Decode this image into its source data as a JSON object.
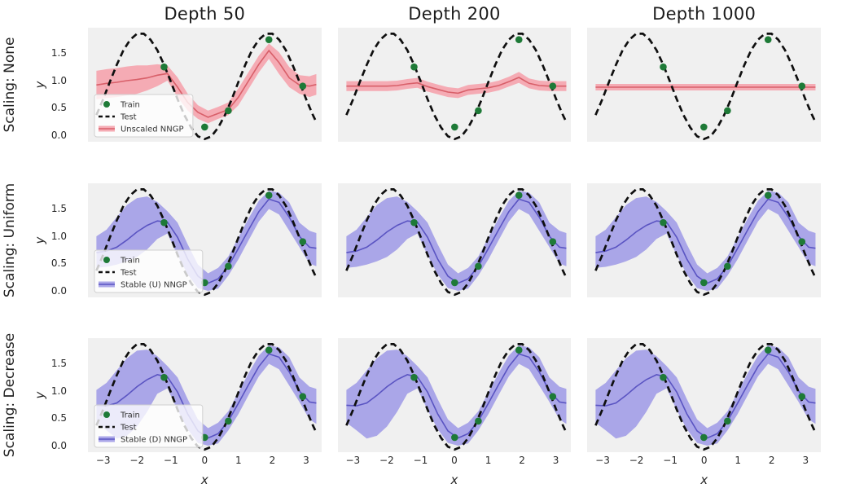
{
  "figure": {
    "columns": [
      "Depth 50",
      "Depth 200",
      "Depth 1000"
    ],
    "rows": [
      {
        "label": "Scaling: None",
        "series_label": "Unscaled NNGP",
        "line_color": "#d85f69",
        "band_color": "#f4a7b0",
        "cells": [
          "unscaled_d50",
          "unscaled_d200",
          "unscaled_d1000"
        ],
        "legend": true
      },
      {
        "label": "Scaling: Uniform",
        "series_label": "Stable (U) NNGP",
        "line_color": "#5a54c2",
        "band_color": "#a5a1e7",
        "cells": [
          "stable_u",
          "stable_u",
          "stable_u"
        ],
        "legend": true
      },
      {
        "label": "Scaling: Decrease",
        "series_label": "Stable (D) NNGP",
        "line_color": "#5a54c2",
        "band_color": "#a5a1e7",
        "cells": [
          "stable_d",
          "stable_d",
          "stable_d"
        ],
        "legend": true
      }
    ],
    "legend_labels": {
      "train": "Train",
      "test": "Test"
    },
    "axes": {
      "xlabel": "x",
      "ylabel": "y",
      "xticks": [
        "−3",
        "−2",
        "−1",
        "0",
        "1",
        "2",
        "3"
      ],
      "xtick_values": [
        -3,
        -2,
        -1,
        0,
        1,
        2,
        3
      ],
      "yticks": [
        "0.0",
        "0.5",
        "1.0",
        "1.5"
      ],
      "ytick_values": [
        0.0,
        0.5,
        1.0,
        1.5
      ],
      "xlim": [
        -3.45,
        3.45
      ],
      "ylim": [
        -0.12,
        1.97
      ]
    },
    "colors": {
      "train_point": "#1e7a37",
      "test_line": "#0f0f0f",
      "plot_background": "#f0f0f0",
      "figure_background": "#ffffff",
      "tick_text": "#262626",
      "legend_text": "#333333"
    }
  },
  "chart_data": {
    "type": "line",
    "title": "",
    "x_grid": [
      -3.2,
      -2.9,
      -2.6,
      -2.3,
      -2.0,
      -1.7,
      -1.4,
      -1.1,
      -0.8,
      -0.5,
      -0.2,
      0.1,
      0.4,
      0.7,
      1.0,
      1.3,
      1.6,
      1.9,
      2.2,
      2.5,
      2.8,
      3.1,
      3.3
    ],
    "test_curve": {
      "x": [
        -3.2,
        -3.0,
        -2.8,
        -2.6,
        -2.4,
        -2.2,
        -2.0,
        -1.8,
        -1.6,
        -1.4,
        -1.2,
        -1.0,
        -0.8,
        -0.6,
        -0.4,
        -0.2,
        0.0,
        0.2,
        0.4,
        0.6,
        0.8,
        1.0,
        1.2,
        1.4,
        1.6,
        1.8,
        2.0,
        2.2,
        2.4,
        2.6,
        2.8,
        3.0,
        3.2,
        3.3
      ],
      "y": [
        0.37,
        0.66,
        0.98,
        1.29,
        1.56,
        1.75,
        1.86,
        1.86,
        1.75,
        1.56,
        1.29,
        0.98,
        0.66,
        0.37,
        0.14,
        -0.02,
        -0.07,
        -0.02,
        0.14,
        0.37,
        0.66,
        0.98,
        1.29,
        1.56,
        1.75,
        1.86,
        1.86,
        1.75,
        1.56,
        1.29,
        0.98,
        0.66,
        0.37,
        0.24
      ]
    },
    "train_points": {
      "x": [
        -1.2,
        0.0,
        0.7,
        1.9,
        2.9
      ],
      "y": [
        1.25,
        0.15,
        0.45,
        1.75,
        0.9
      ]
    },
    "curves": {
      "unscaled_d50": {
        "mean": [
          0.92,
          0.95,
          0.97,
          1.0,
          1.02,
          1.05,
          1.1,
          1.13,
          0.88,
          0.6,
          0.42,
          0.33,
          0.4,
          0.47,
          0.7,
          1.0,
          1.3,
          1.55,
          1.33,
          1.05,
          0.92,
          0.9,
          0.93
        ],
        "lo": [
          0.66,
          0.68,
          0.7,
          0.73,
          0.76,
          0.82,
          0.9,
          1.0,
          0.7,
          0.45,
          0.3,
          0.22,
          0.3,
          0.37,
          0.55,
          0.85,
          1.15,
          1.4,
          1.12,
          0.88,
          0.76,
          0.7,
          0.74
        ],
        "hi": [
          1.18,
          1.21,
          1.23,
          1.26,
          1.28,
          1.28,
          1.3,
          1.28,
          1.06,
          0.76,
          0.55,
          0.45,
          0.52,
          0.6,
          0.86,
          1.16,
          1.46,
          1.68,
          1.52,
          1.25,
          1.1,
          1.08,
          1.12
        ]
      },
      "unscaled_d200": {
        "mean": [
          0.9,
          0.9,
          0.9,
          0.9,
          0.9,
          0.91,
          0.94,
          0.96,
          0.89,
          0.84,
          0.79,
          0.77,
          0.83,
          0.85,
          0.87,
          0.91,
          0.98,
          1.06,
          0.95,
          0.91,
          0.9,
          0.9,
          0.9
        ],
        "lo": [
          0.81,
          0.81,
          0.81,
          0.81,
          0.81,
          0.82,
          0.85,
          0.87,
          0.8,
          0.75,
          0.7,
          0.68,
          0.74,
          0.76,
          0.78,
          0.82,
          0.89,
          0.96,
          0.86,
          0.82,
          0.81,
          0.81,
          0.81
        ],
        "hi": [
          0.99,
          0.99,
          0.99,
          0.99,
          0.99,
          1.0,
          1.03,
          1.05,
          0.98,
          0.93,
          0.88,
          0.86,
          0.92,
          0.94,
          0.96,
          1.0,
          1.07,
          1.16,
          1.04,
          1.0,
          0.99,
          0.99,
          0.99
        ]
      },
      "unscaled_d1000": {
        "mean": [
          0.88,
          0.88,
          0.88,
          0.88,
          0.88,
          0.88,
          0.88,
          0.88,
          0.88,
          0.88,
          0.88,
          0.88,
          0.88,
          0.88,
          0.88,
          0.88,
          0.88,
          0.88,
          0.88,
          0.88,
          0.88,
          0.88,
          0.88
        ],
        "lo": [
          0.82,
          0.82,
          0.82,
          0.82,
          0.82,
          0.82,
          0.82,
          0.82,
          0.82,
          0.82,
          0.82,
          0.82,
          0.82,
          0.82,
          0.82,
          0.82,
          0.82,
          0.82,
          0.82,
          0.82,
          0.82,
          0.82,
          0.82
        ],
        "hi": [
          0.94,
          0.94,
          0.94,
          0.94,
          0.94,
          0.94,
          0.94,
          0.94,
          0.94,
          0.94,
          0.94,
          0.94,
          0.94,
          0.94,
          0.94,
          0.94,
          0.94,
          0.94,
          0.94,
          0.94,
          0.94,
          0.94,
          0.94
        ]
      },
      "stable_u": {
        "mean": [
          0.7,
          0.73,
          0.8,
          0.93,
          1.08,
          1.2,
          1.28,
          1.26,
          0.98,
          0.58,
          0.27,
          0.14,
          0.22,
          0.45,
          0.78,
          1.12,
          1.45,
          1.68,
          1.62,
          1.35,
          1.0,
          0.8,
          0.78
        ],
        "lo": [
          0.42,
          0.44,
          0.48,
          0.54,
          0.62,
          0.76,
          0.95,
          1.05,
          0.65,
          0.3,
          0.05,
          0.0,
          0.04,
          0.28,
          0.58,
          0.93,
          1.27,
          1.5,
          1.4,
          1.1,
          0.8,
          0.5,
          0.45
        ],
        "hi": [
          1.0,
          1.12,
          1.35,
          1.57,
          1.7,
          1.73,
          1.63,
          1.46,
          1.25,
          0.85,
          0.48,
          0.32,
          0.42,
          0.63,
          0.98,
          1.33,
          1.65,
          1.83,
          1.8,
          1.62,
          1.25,
          1.1,
          1.06
        ]
      },
      "stable_d": {
        "mean": [
          0.74,
          0.73,
          0.78,
          0.92,
          1.08,
          1.21,
          1.3,
          1.26,
          0.98,
          0.58,
          0.27,
          0.14,
          0.22,
          0.45,
          0.78,
          1.12,
          1.45,
          1.68,
          1.62,
          1.35,
          1.0,
          0.8,
          0.78
        ],
        "lo": [
          0.42,
          0.28,
          0.13,
          0.18,
          0.35,
          0.62,
          0.95,
          1.05,
          0.65,
          0.3,
          0.05,
          0.0,
          0.04,
          0.28,
          0.58,
          0.93,
          1.27,
          1.5,
          1.4,
          1.1,
          0.8,
          0.48,
          0.4
        ],
        "hi": [
          1.02,
          1.15,
          1.38,
          1.6,
          1.74,
          1.76,
          1.64,
          1.46,
          1.25,
          0.85,
          0.48,
          0.32,
          0.42,
          0.63,
          0.98,
          1.33,
          1.65,
          1.84,
          1.8,
          1.62,
          1.25,
          1.08,
          1.04
        ]
      }
    }
  }
}
